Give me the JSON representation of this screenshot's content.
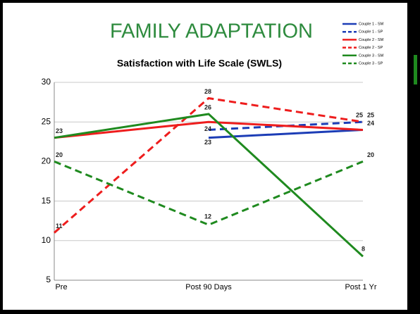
{
  "chart_data": {
    "type": "line",
    "slide_title": "FAMILY ADAPTATION",
    "title": "Satisfaction with Life Scale (SWLS)",
    "categories": [
      "Pre",
      "Post 90 Days",
      "Post 1 Yr"
    ],
    "ylim": [
      5,
      30
    ],
    "yticks": [
      5,
      10,
      15,
      20,
      25,
      30
    ],
    "grid": true,
    "legend": "top-right",
    "series": [
      {
        "name": "Couple 1 - SM",
        "color": "#1c3db6",
        "dashed": false,
        "values": [
          null,
          23,
          24
        ],
        "data_labels": [
          false,
          true,
          true
        ]
      },
      {
        "name": "Couple 1 - SP",
        "color": "#1c3db6",
        "dashed": true,
        "values": [
          null,
          24,
          25
        ],
        "data_labels": [
          false,
          true,
          true
        ]
      },
      {
        "name": "Couple 2 - SM",
        "color": "#ee1d1d",
        "dashed": false,
        "values": [
          23,
          25,
          24
        ],
        "data_labels": [
          false,
          false,
          false
        ]
      },
      {
        "name": "Couple 2 - SP",
        "color": "#ee1d1d",
        "dashed": true,
        "values": [
          11,
          28,
          25
        ],
        "data_labels": [
          true,
          true,
          true
        ]
      },
      {
        "name": "Couple 3 - SM",
        "color": "#1f8a1f",
        "dashed": false,
        "values": [
          23,
          26,
          8
        ],
        "data_labels": [
          true,
          true,
          true
        ]
      },
      {
        "name": "Couple 3 - SP",
        "color": "#1f8a1f",
        "dashed": true,
        "values": [
          20,
          12,
          20
        ],
        "data_labels": [
          true,
          true,
          true
        ]
      }
    ]
  }
}
